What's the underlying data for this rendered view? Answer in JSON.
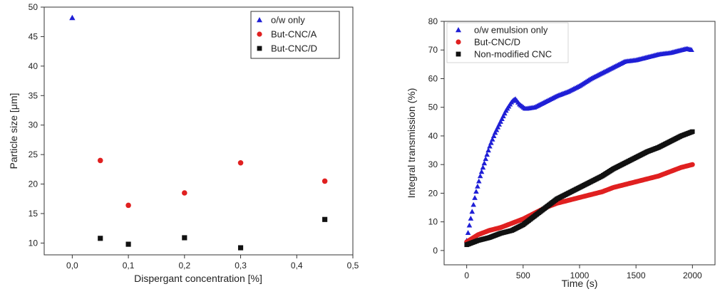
{
  "chart_data": [
    {
      "type": "scatter",
      "title": "",
      "xlabel": "Dispergant concentration [%]",
      "ylabel": "Particle size [μm]",
      "xlim": [
        -0.05,
        0.5
      ],
      "ylim": [
        8,
        50
      ],
      "xticks": [
        0.0,
        0.1,
        0.2,
        0.3,
        0.4,
        0.5
      ],
      "xtick_labels": [
        "0,0",
        "0,1",
        "0,2",
        "0,3",
        "0,4",
        "0,5"
      ],
      "yticks": [
        10,
        15,
        20,
        25,
        30,
        35,
        40,
        45,
        50
      ],
      "ytick_labels": [
        "10",
        "15",
        "20",
        "25",
        "30",
        "35",
        "40",
        "45",
        "50"
      ],
      "legend_position": "top-right",
      "grid": false,
      "series": [
        {
          "name": "o/w only",
          "marker": "triangle",
          "color": "#1f1fd6",
          "points": [
            [
              0.0,
              48.2
            ]
          ]
        },
        {
          "name": "But-CNC/A",
          "marker": "circle",
          "color": "#e02020",
          "points": [
            [
              0.05,
              24.0
            ],
            [
              0.1,
              16.4
            ],
            [
              0.2,
              18.5
            ],
            [
              0.3,
              23.6
            ],
            [
              0.45,
              20.5
            ]
          ]
        },
        {
          "name": "But-CNC/D",
          "marker": "square",
          "color": "#111111",
          "points": [
            [
              0.05,
              10.8
            ],
            [
              0.1,
              9.8
            ],
            [
              0.2,
              10.9
            ],
            [
              0.3,
              9.2
            ],
            [
              0.45,
              14.0
            ]
          ]
        }
      ]
    },
    {
      "type": "scatter",
      "title": "",
      "xlabel": "Time (s)",
      "ylabel": "Integral transmission (%)",
      "xlim": [
        -200,
        2200
      ],
      "ylim": [
        -5,
        80
      ],
      "xticks": [
        0,
        500,
        1000,
        1500,
        2000
      ],
      "xtick_labels": [
        "0",
        "500",
        "1000",
        "1500",
        "2000"
      ],
      "yticks": [
        0,
        10,
        20,
        30,
        40,
        50,
        60,
        70,
        80
      ],
      "ytick_labels": [
        "0",
        "10",
        "20",
        "30",
        "40",
        "50",
        "60",
        "70",
        "80"
      ],
      "legend_position": "top-left",
      "grid": false,
      "series": [
        {
          "name": "o/w emulsion only",
          "marker": "triangle",
          "color": "#1f1fd6",
          "curve": [
            [
              0,
              3.5
            ],
            [
              20,
              8
            ],
            [
              50,
              14
            ],
            [
              80,
              20
            ],
            [
              120,
              26
            ],
            [
              160,
              31
            ],
            [
              200,
              36
            ],
            [
              250,
              41
            ],
            [
              300,
              45
            ],
            [
              350,
              49
            ],
            [
              400,
              52
            ],
            [
              430,
              53
            ],
            [
              470,
              51
            ],
            [
              520,
              49.5
            ],
            [
              600,
              50
            ],
            [
              700,
              52
            ],
            [
              800,
              54
            ],
            [
              900,
              55.5
            ],
            [
              1000,
              57.5
            ],
            [
              1100,
              60
            ],
            [
              1200,
              62
            ],
            [
              1300,
              64
            ],
            [
              1400,
              66
            ],
            [
              1500,
              66.5
            ],
            [
              1600,
              67.5
            ],
            [
              1700,
              68.5
            ],
            [
              1800,
              69
            ],
            [
              1900,
              70
            ],
            [
              1950,
              70.5
            ],
            [
              2000,
              70
            ]
          ],
          "step": 12
        },
        {
          "name": "But-CNC/D",
          "marker": "circle",
          "color": "#e02020",
          "curve": [
            [
              0,
              3
            ],
            [
              100,
              5.5
            ],
            [
              200,
              7
            ],
            [
              300,
              8
            ],
            [
              400,
              9.5
            ],
            [
              500,
              11
            ],
            [
              600,
              13
            ],
            [
              700,
              15
            ],
            [
              800,
              16.5
            ],
            [
              900,
              17.5
            ],
            [
              1000,
              18.5
            ],
            [
              1100,
              19.5
            ],
            [
              1200,
              20.5
            ],
            [
              1300,
              22
            ],
            [
              1400,
              23
            ],
            [
              1500,
              24
            ],
            [
              1600,
              25
            ],
            [
              1700,
              26
            ],
            [
              1800,
              27.5
            ],
            [
              1900,
              29
            ],
            [
              2000,
              30
            ]
          ],
          "step": 10
        },
        {
          "name": "Non-modified CNC",
          "marker": "square",
          "color": "#111111",
          "curve": [
            [
              0,
              2
            ],
            [
              100,
              3.5
            ],
            [
              200,
              4.5
            ],
            [
              300,
              6
            ],
            [
              400,
              7
            ],
            [
              500,
              9
            ],
            [
              600,
              12
            ],
            [
              700,
              15
            ],
            [
              800,
              18
            ],
            [
              900,
              20
            ],
            [
              1000,
              22
            ],
            [
              1100,
              24
            ],
            [
              1200,
              26
            ],
            [
              1300,
              28.5
            ],
            [
              1400,
              30.5
            ],
            [
              1500,
              32.5
            ],
            [
              1600,
              34.5
            ],
            [
              1700,
              36
            ],
            [
              1800,
              38
            ],
            [
              1900,
              40
            ],
            [
              2000,
              41.5
            ]
          ],
          "step": 10
        }
      ]
    }
  ]
}
